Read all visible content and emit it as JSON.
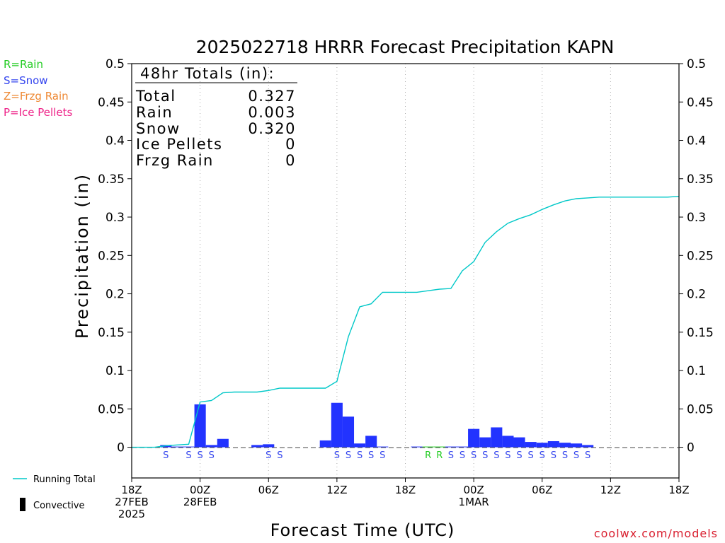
{
  "title": "2025022718 HRRR Forecast Precipitation KAPN",
  "totals": {
    "heading": "48hr Totals (in):",
    "rows": [
      {
        "label": "Total",
        "value": "0.327"
      },
      {
        "label": "Rain",
        "value": "0.003"
      },
      {
        "label": "Snow",
        "value": "0.320"
      },
      {
        "label": "Ice Pellets",
        "value": "0"
      },
      {
        "label": "Frzg Rain",
        "value": "0"
      }
    ]
  },
  "legend_types": [
    {
      "text": "R=Rain",
      "color": "#22cc22"
    },
    {
      "text": "S=Snow",
      "color": "#3344ee"
    },
    {
      "text": "Z=Frzg Rain",
      "color": "#ee8833"
    },
    {
      "text": "P=Ice Pellets",
      "color": "#ee2288"
    }
  ],
  "legend_series": {
    "running_total": "Running Total",
    "convective": "Convective"
  },
  "credit": "coolwx.com/models",
  "colors": {
    "bar": "#2233ff",
    "bar_rain": "#22cc22",
    "running_total": "#00c8c8",
    "grid": "#aaaaaa"
  },
  "chart_data": {
    "type": "bar",
    "title": "2025022718 HRRR Forecast Precipitation KAPN",
    "xlabel": "Forecast Time (UTC)",
    "ylabel": "Precipitation (in)",
    "ylim": [
      -0.04,
      0.5
    ],
    "yticks": [
      0,
      0.05,
      0.1,
      0.15,
      0.2,
      0.25,
      0.3,
      0.35,
      0.4,
      0.45,
      0.5
    ],
    "ytick_labels": [
      "0",
      "0.05",
      "0.1",
      "0.15",
      "0.2",
      "0.25",
      "0.3",
      "0.35",
      "0.4",
      "0.45",
      "0.5"
    ],
    "xlim": [
      0,
      48
    ],
    "x_unit": "forecast hour",
    "xticks": [
      {
        "x": 0,
        "lines": [
          "18Z",
          "27FEB",
          "2025"
        ]
      },
      {
        "x": 6,
        "lines": [
          "00Z",
          "28FEB"
        ]
      },
      {
        "x": 12,
        "lines": [
          "06Z"
        ]
      },
      {
        "x": 18,
        "lines": [
          "12Z"
        ]
      },
      {
        "x": 24,
        "lines": [
          "18Z"
        ]
      },
      {
        "x": 30,
        "lines": [
          "00Z",
          "1MAR"
        ]
      },
      {
        "x": 36,
        "lines": [
          "06Z"
        ]
      },
      {
        "x": 42,
        "lines": [
          "12Z"
        ]
      },
      {
        "x": 48,
        "lines": [
          "18Z"
        ]
      }
    ],
    "grid": "vertical dotted at 6-hourly ticks",
    "hourly_precip": {
      "hours": [
        3,
        4,
        5,
        6,
        7,
        8,
        11,
        12,
        17,
        18,
        19,
        20,
        21,
        22,
        25,
        26,
        27,
        28,
        29,
        30,
        31,
        32,
        33,
        34,
        35,
        36,
        37,
        38,
        39,
        40
      ],
      "values": [
        0.002,
        0.0,
        0.0,
        0.055,
        0.002,
        0.01,
        0.002,
        0.003,
        0.008,
        0.057,
        0.039,
        0.004,
        0.014,
        0.0,
        0.0,
        0.0,
        0.0,
        0.0,
        0.0,
        0.023,
        0.012,
        0.025,
        0.014,
        0.012,
        0.006,
        0.005,
        0.007,
        0.005,
        0.004,
        0.002
      ]
    },
    "precip_types": {
      "hours": [
        3,
        5,
        6,
        7,
        12,
        13,
        18,
        19,
        20,
        21,
        22,
        26,
        27,
        28,
        29,
        30,
        31,
        32,
        33,
        34,
        35,
        36,
        37,
        38,
        39,
        40
      ],
      "labels": [
        "S",
        "S",
        "S",
        "S",
        "S",
        "S",
        "S",
        "S",
        "S",
        "S",
        "S",
        "R",
        "R",
        "S",
        "S",
        "S",
        "S",
        "S",
        "S",
        "S",
        "S",
        "S",
        "S",
        "S",
        "S",
        "S"
      ]
    },
    "series": [
      {
        "name": "Running Total",
        "x": [
          0,
          2,
          3,
          4,
          5,
          6,
          7,
          8,
          9,
          10,
          11,
          12,
          13,
          14,
          15,
          16,
          17,
          18,
          19,
          20,
          21,
          22,
          23,
          24,
          25,
          26,
          27,
          28,
          29,
          30,
          31,
          32,
          33,
          34,
          35,
          36,
          37,
          38,
          39,
          40,
          41,
          42,
          43,
          44,
          45,
          46,
          47,
          48
        ],
        "values": [
          0,
          0,
          0.002,
          0.003,
          0.004,
          0.059,
          0.061,
          0.071,
          0.072,
          0.072,
          0.072,
          0.074,
          0.077,
          0.077,
          0.077,
          0.077,
          0.077,
          0.086,
          0.144,
          0.183,
          0.187,
          0.202,
          0.202,
          0.202,
          0.202,
          0.204,
          0.206,
          0.207,
          0.23,
          0.242,
          0.267,
          0.281,
          0.292,
          0.298,
          0.303,
          0.31,
          0.316,
          0.321,
          0.324,
          0.325,
          0.326,
          0.326,
          0.326,
          0.326,
          0.326,
          0.326,
          0.326,
          0.327
        ]
      }
    ]
  }
}
